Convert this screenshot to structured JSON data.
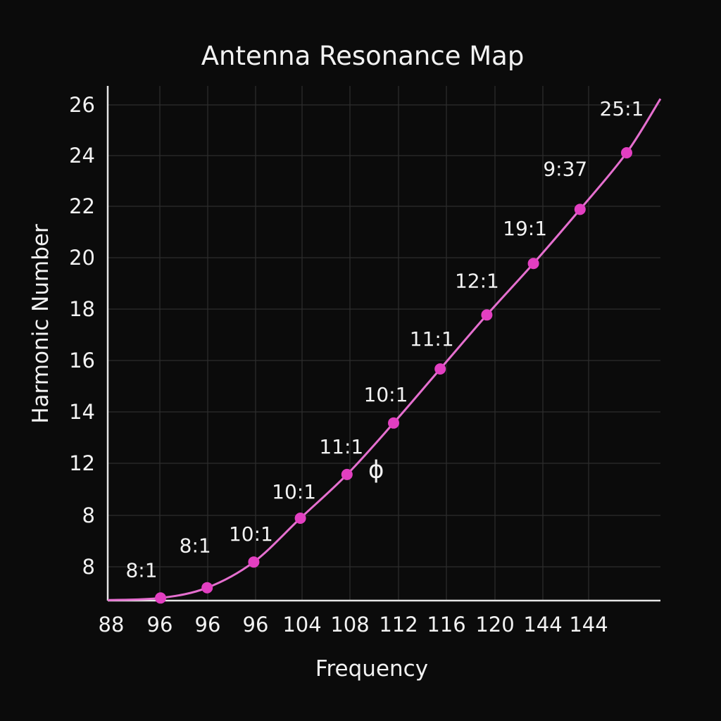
{
  "chart_data": {
    "type": "line",
    "title": "Antenna Resonance Map",
    "xlabel": "Frequency",
    "ylabel": "Harmonic Number",
    "x_tick_labels": [
      "88",
      "96",
      "96",
      "96",
      "104",
      "108",
      "112",
      "116",
      "120",
      "144",
      "144"
    ],
    "y_tick_labels": [
      "8",
      "8",
      "12",
      "14",
      "16",
      "18",
      "20",
      "22",
      "24",
      "26"
    ],
    "ylim": [
      6.7,
      26.7
    ],
    "grid": true,
    "color": "#e56fcf",
    "point_color": "#e23fc1",
    "series": [
      {
        "x": [
          96,
          100,
          104,
          108,
          112,
          116,
          120,
          124,
          128,
          132,
          136
        ],
        "y": [
          6.8,
          7.2,
          8.2,
          9.9,
          11.6,
          13.6,
          15.7,
          17.8,
          19.8,
          21.9,
          24.1
        ],
        "labels": [
          "8:1",
          "8:1",
          "10:1",
          "10:1",
          "11:1",
          "10:1",
          "11:1",
          "12:1",
          "19:1",
          "9:37",
          "25:1"
        ]
      }
    ],
    "annotations": [
      {
        "text": "ϕ",
        "x": 114.5,
        "y": 11.8
      }
    ]
  }
}
